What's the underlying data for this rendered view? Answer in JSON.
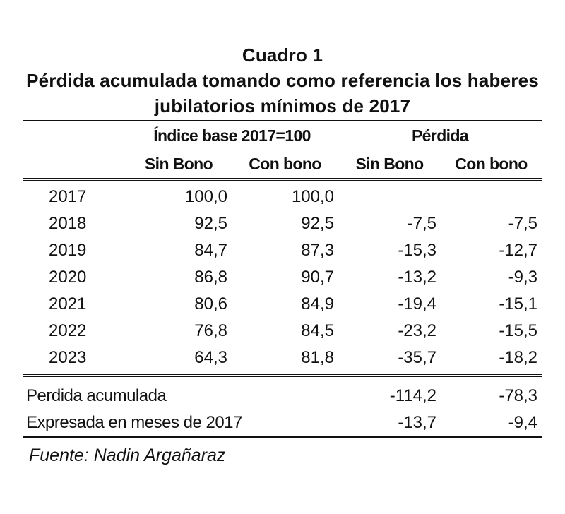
{
  "chart_data": {
    "type": "table",
    "title_line1": "Cuadro 1",
    "title_line2": "Pérdida acumulada tomando como referencia los haberes jubilatorios mínimos de 2017",
    "group_headers": [
      "Índice base 2017=100",
      "Pérdida"
    ],
    "column_headers": [
      "Sin Bono",
      "Con bono",
      "Sin Bono",
      "Con bono"
    ],
    "rows": [
      {
        "year": "2017",
        "idx_sin": "100,0",
        "idx_con": "100,0",
        "per_sin": "",
        "per_con": ""
      },
      {
        "year": "2018",
        "idx_sin": "92,5",
        "idx_con": "92,5",
        "per_sin": "-7,5",
        "per_con": "-7,5"
      },
      {
        "year": "2019",
        "idx_sin": "84,7",
        "idx_con": "87,3",
        "per_sin": "-15,3",
        "per_con": "-12,7"
      },
      {
        "year": "2020",
        "idx_sin": "86,8",
        "idx_con": "90,7",
        "per_sin": "-13,2",
        "per_con": "-9,3"
      },
      {
        "year": "2021",
        "idx_sin": "80,6",
        "idx_con": "84,9",
        "per_sin": "-19,4",
        "per_con": "-15,1"
      },
      {
        "year": "2022",
        "idx_sin": "76,8",
        "idx_con": "84,5",
        "per_sin": "-23,2",
        "per_con": "-15,5"
      },
      {
        "year": "2023",
        "idx_sin": "64,3",
        "idx_con": "81,8",
        "per_sin": "-35,7",
        "per_con": "-18,2"
      }
    ],
    "summary": [
      {
        "label": "Perdida acumulada",
        "per_sin": "-114,2",
        "per_con": "-78,3"
      },
      {
        "label": "Expresada en meses de 2017",
        "per_sin": "-13,7",
        "per_con": "-9,4"
      }
    ],
    "source": "Fuente: Nadin Argañaraz"
  }
}
